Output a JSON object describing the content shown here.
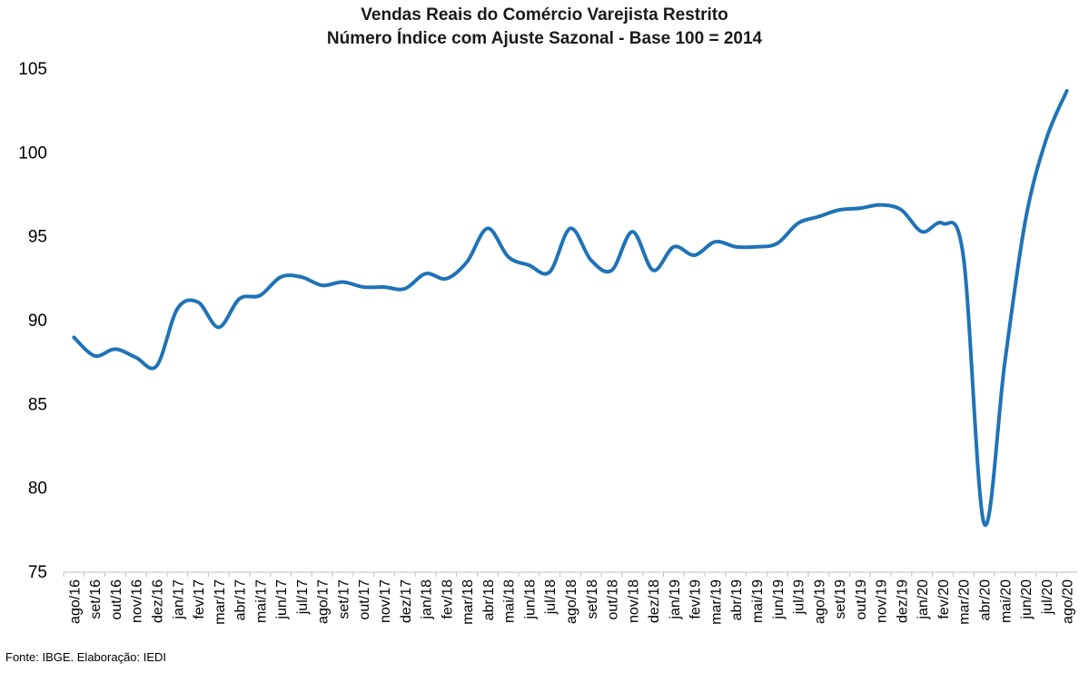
{
  "chart_data": {
    "type": "line",
    "title": "Vendas Reais do Comércio Varejista Restrito",
    "subtitle": "Número Índice com Ajuste Sazonal - Base 100 = 2014",
    "xlabel": "",
    "ylabel": "",
    "ylim": [
      75,
      105
    ],
    "yticks": [
      75,
      80,
      85,
      90,
      95,
      100,
      105
    ],
    "grid": false,
    "legend": "none",
    "line_color": "#1f73b7",
    "categories": [
      "ago/16",
      "set/16",
      "out/16",
      "nov/16",
      "dez/16",
      "jan/17",
      "fev/17",
      "mar/17",
      "abr/17",
      "mai/17",
      "jun/17",
      "jul/17",
      "ago/17",
      "set/17",
      "out/17",
      "nov/17",
      "dez/17",
      "jan/18",
      "fev/18",
      "mar/18",
      "abr/18",
      "mai/18",
      "jun/18",
      "jul/18",
      "ago/18",
      "set/18",
      "out/18",
      "nov/18",
      "dez/18",
      "jan/19",
      "fev/19",
      "mar/19",
      "abr/19",
      "mai/19",
      "jun/19",
      "jul/19",
      "ago/19",
      "set/19",
      "out/19",
      "nov/19",
      "dez/19",
      "jan/20",
      "fev/20",
      "mar/20",
      "abr/20",
      "mai/20",
      "jun/20",
      "jul/20",
      "ago/20"
    ],
    "series": [
      {
        "values": [
          89.0,
          87.9,
          88.3,
          87.8,
          87.3,
          90.7,
          91.1,
          89.6,
          91.3,
          91.5,
          92.6,
          92.6,
          92.1,
          92.3,
          92.0,
          92.0,
          91.9,
          92.8,
          92.5,
          93.5,
          95.5,
          93.8,
          93.3,
          92.9,
          95.5,
          93.6,
          93.0,
          95.3,
          93.0,
          94.4,
          93.9,
          94.7,
          94.4,
          94.4,
          94.6,
          95.8,
          96.2,
          96.6,
          96.7,
          96.9,
          96.6,
          95.3,
          95.8,
          93.8,
          77.9,
          87.5,
          96.0,
          100.8,
          103.7
        ]
      }
    ]
  },
  "source_note": "Fonte: IBGE. Elaboração: IEDI"
}
